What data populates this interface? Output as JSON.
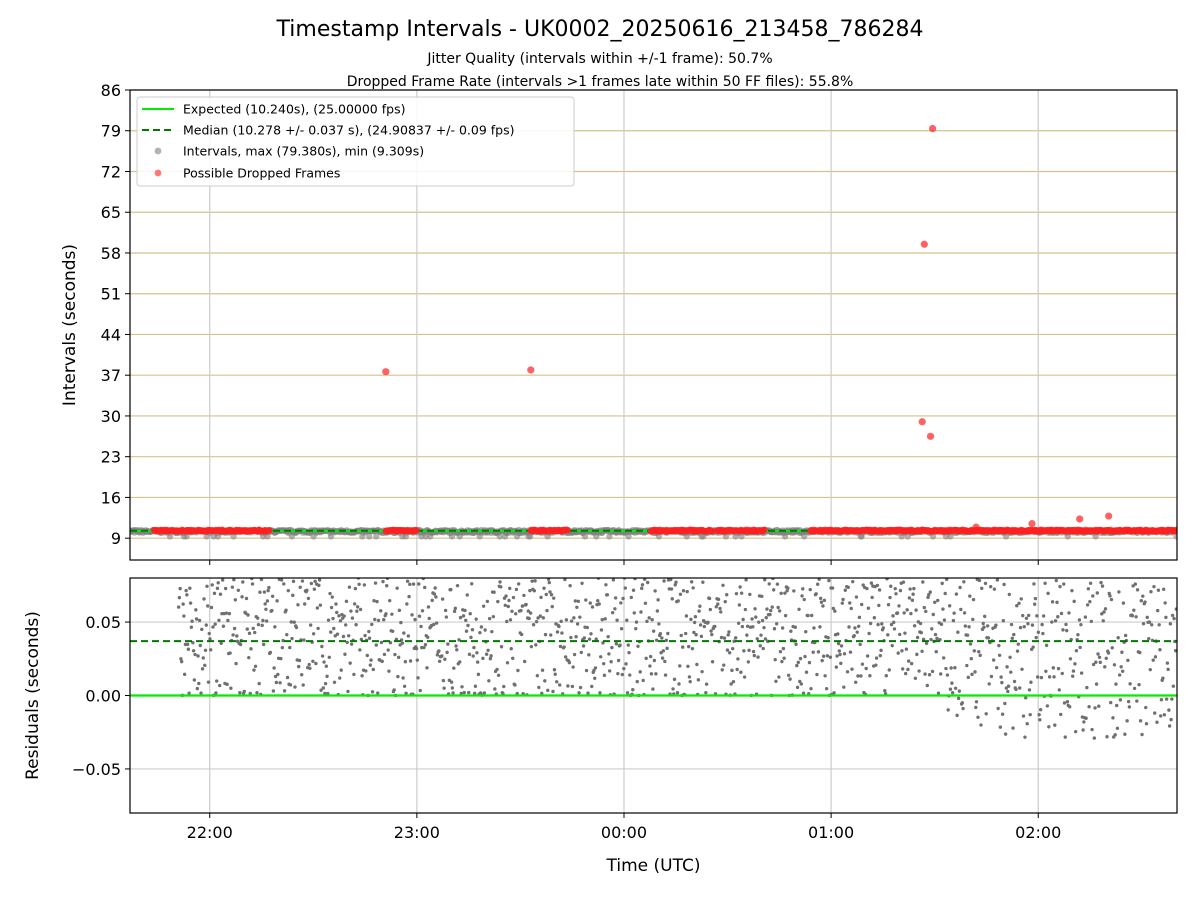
{
  "chart_data": [
    {
      "type": "scatter",
      "title": "Timestamp Intervals - UK0002_20250616_213458_786284",
      "subtitle_lines": [
        "Jitter Quality (intervals within +/-1 frame): 50.7%",
        "Dropped Frame Rate (intervals >1 frames late within 50 FF files): 55.8%"
      ],
      "xlabel": "",
      "ylabel": "Intervals (seconds)",
      "x_range_hours": [
        21.615,
        26.67
      ],
      "ylim": [
        5.25,
        86
      ],
      "yticks": [
        9,
        16,
        23,
        30,
        37,
        44,
        51,
        58,
        65,
        72,
        79,
        86
      ],
      "xticks": [
        {
          "value": 22,
          "label": "22:00"
        },
        {
          "value": 23,
          "label": "23:00"
        },
        {
          "value": 24,
          "label": "00:00"
        },
        {
          "value": 25,
          "label": "01:00"
        },
        {
          "value": 26,
          "label": "02:00"
        }
      ],
      "legend_placement": "top-left",
      "legend": [
        "Expected (10.240s), (25.00000 fps)",
        "Median (10.278 +/- 0.037 s), (24.90837 +/- 0.09 fps)",
        "Intervals, max (79.380s), min (9.309s)",
        "Possible Dropped Frames"
      ],
      "expected_interval": 10.24,
      "median_interval": 10.278,
      "series": [
        {
          "name": "Intervals, max (79.380s), min (9.309s)",
          "color": "#808080",
          "x_start": 21.59,
          "x_end": 26.67,
          "y_band": [
            9.309,
            10.4
          ]
        },
        {
          "name": "Possible Dropped Frames",
          "color": "#ff2020",
          "dense_segments": [
            [
              21.73,
              22.29
            ],
            [
              22.85,
              23.0
            ],
            [
              23.55,
              23.73
            ],
            [
              24.13,
              24.43
            ],
            [
              24.45,
              24.52
            ],
            [
              24.53,
              24.68
            ],
            [
              24.9,
              25.5
            ],
            [
              25.5,
              26.67
            ]
          ],
          "points": [
            {
              "x": 22.85,
              "y": 37.6
            },
            {
              "x": 23.55,
              "y": 37.9
            },
            {
              "x": 25.44,
              "y": 29.0
            },
            {
              "x": 25.45,
              "y": 59.5
            },
            {
              "x": 25.48,
              "y": 26.5
            },
            {
              "x": 25.49,
              "y": 79.38
            },
            {
              "x": 25.7,
              "y": 10.9
            },
            {
              "x": 25.97,
              "y": 11.5
            },
            {
              "x": 26.2,
              "y": 12.3
            },
            {
              "x": 26.34,
              "y": 12.8
            }
          ]
        }
      ],
      "grid": "vertical at x ticks, horizontal at y ticks"
    },
    {
      "type": "scatter",
      "xlabel": "Time (UTC)",
      "ylabel": "Residuals (seconds)",
      "ylim": [
        -0.08,
        0.08
      ],
      "yticks": [
        {
          "value": 0.05,
          "label": "0.05"
        },
        {
          "value": 0.0,
          "label": "0.00"
        },
        {
          "value": -0.05,
          "label": "−0.05"
        }
      ],
      "expected_residual": 0.0,
      "median_residual": 0.037,
      "series": [
        {
          "name": "",
          "color": "#707070",
          "x_start": 21.85,
          "x_end": 26.67,
          "y_band_main": [
            0.0,
            0.08
          ],
          "y_band_late": [
            -0.03,
            0.08
          ],
          "late_start": 25.5
        }
      ],
      "grid": "both"
    }
  ],
  "colors": {
    "expected": "#00ee00",
    "median": "#007700",
    "hgrid_top": "#d4c28a",
    "grid": "#cccccc"
  }
}
